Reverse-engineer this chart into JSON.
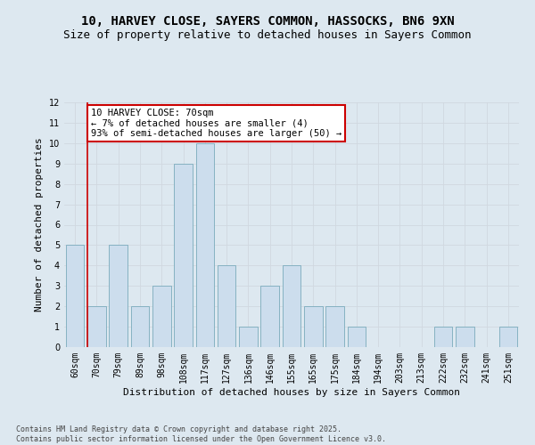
{
  "title_line1": "10, HARVEY CLOSE, SAYERS COMMON, HASSOCKS, BN6 9XN",
  "title_line2": "Size of property relative to detached houses in Sayers Common",
  "xlabel": "Distribution of detached houses by size in Sayers Common",
  "ylabel": "Number of detached properties",
  "categories": [
    "60sqm",
    "70sqm",
    "79sqm",
    "89sqm",
    "98sqm",
    "108sqm",
    "117sqm",
    "127sqm",
    "136sqm",
    "146sqm",
    "155sqm",
    "165sqm",
    "175sqm",
    "184sqm",
    "194sqm",
    "203sqm",
    "213sqm",
    "222sqm",
    "232sqm",
    "241sqm",
    "251sqm"
  ],
  "values": [
    5,
    2,
    5,
    2,
    3,
    9,
    10,
    4,
    1,
    3,
    4,
    2,
    2,
    1,
    0,
    0,
    0,
    1,
    1,
    0,
    1
  ],
  "bar_color": "#ccdded",
  "bar_edge_color": "#7aaabb",
  "vline_index": 1,
  "vline_color": "#cc0000",
  "annotation_text": "10 HARVEY CLOSE: 70sqm\n← 7% of detached houses are smaller (4)\n93% of semi-detached houses are larger (50) →",
  "annotation_box_color": "white",
  "annotation_box_edge_color": "#cc0000",
  "ylim": [
    0,
    12
  ],
  "yticks": [
    0,
    1,
    2,
    3,
    4,
    5,
    6,
    7,
    8,
    9,
    10,
    11,
    12
  ],
  "grid_color": "#d0d8e0",
  "background_color": "#dde8f0",
  "plot_bg_color": "#dde8f0",
  "footer_line1": "Contains HM Land Registry data © Crown copyright and database right 2025.",
  "footer_line2": "Contains public sector information licensed under the Open Government Licence v3.0.",
  "title_fontsize": 10,
  "subtitle_fontsize": 9,
  "axis_label_fontsize": 8,
  "tick_fontsize": 7,
  "annotation_fontsize": 7.5,
  "footer_fontsize": 6
}
